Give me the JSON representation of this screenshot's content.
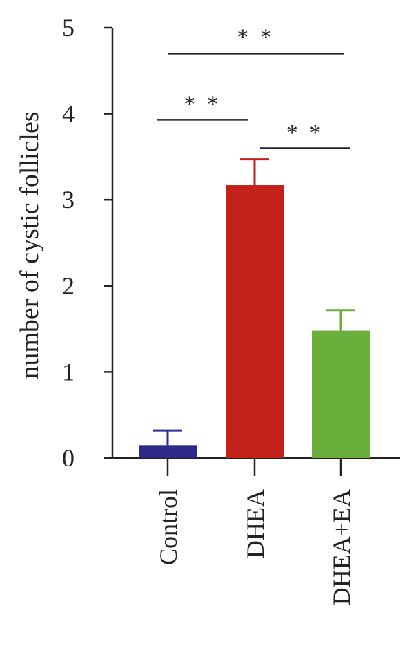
{
  "chart_data": {
    "type": "bar",
    "ylabel": "number of cystic follicles",
    "xlabel": "",
    "ylim": [
      0,
      5
    ],
    "yticks": [
      "0",
      "1",
      "2",
      "3",
      "4",
      "5"
    ],
    "categories": [
      "Control",
      "DHEA",
      "DHEA+EA"
    ],
    "values": [
      0.15,
      3.17,
      1.48
    ],
    "errors": [
      0.17,
      0.3,
      0.24
    ],
    "colors": [
      "#2E2A8C",
      "#C42218",
      "#6AAE3C"
    ],
    "grid": false,
    "significance": [
      {
        "from": 0,
        "to": 1,
        "label": "* *",
        "y": 3.93,
        "label_y": 4.12
      },
      {
        "from": 1,
        "to": 2,
        "label": "* *",
        "y": 3.6,
        "label_y": 3.79
      },
      {
        "from": 0,
        "to": 2,
        "label": "* *",
        "y": 4.7,
        "label_y": 4.9
      }
    ]
  }
}
